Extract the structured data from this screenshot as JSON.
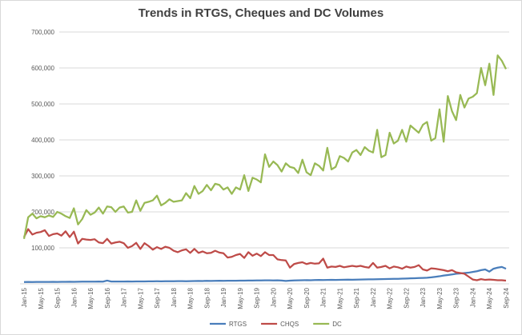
{
  "chart_data": {
    "type": "line",
    "title": "Trends in RTGS, Cheques and DC Volumes",
    "categories": [
      "Jan-15",
      null,
      null,
      null,
      "May-15",
      null,
      null,
      null,
      "Sep-15",
      null,
      null,
      null,
      "Jan-16",
      null,
      null,
      null,
      "May-16",
      null,
      null,
      null,
      "Sep-16",
      null,
      null,
      null,
      "Jan-17",
      null,
      null,
      null,
      "May-17",
      null,
      null,
      null,
      "Sep-17",
      null,
      null,
      null,
      "Jan-18",
      null,
      null,
      null,
      "May-18",
      null,
      null,
      null,
      "Sep-18",
      null,
      null,
      null,
      "Jan-19",
      null,
      null,
      null,
      "May-19",
      null,
      null,
      null,
      "Sep-19",
      null,
      null,
      null,
      "Jan-20",
      null,
      null,
      null,
      "May-20",
      null,
      null,
      null,
      "Sep-20",
      null,
      null,
      null,
      "Jan-21",
      null,
      null,
      null,
      "May-21",
      null,
      null,
      null,
      "Sep-21",
      null,
      null,
      null,
      "Jan-22",
      null,
      null,
      null,
      "May-22",
      null,
      null,
      null,
      "Sep-22",
      null,
      null,
      null,
      "Jan-23",
      null,
      null,
      null,
      "May-23",
      null,
      null,
      null,
      "Sep-23",
      null,
      null,
      null,
      "Jan-24",
      null,
      null,
      null,
      "May-24",
      null,
      null,
      null,
      "Sep-24"
    ],
    "series": [
      {
        "name": "RTGS",
        "color": "#4a7ebb",
        "values": [
          5000,
          5200,
          5100,
          5300,
          5200,
          5400,
          5300,
          5500,
          5400,
          5600,
          5500,
          5800,
          5700,
          5900,
          6000,
          6100,
          6000,
          6200,
          6300,
          6100,
          9000,
          6400,
          6300,
          6500,
          6400,
          6600,
          6500,
          6700,
          6800,
          6600,
          6900,
          7000,
          7100,
          7000,
          7200,
          7300,
          7200,
          7400,
          7500,
          7300,
          7600,
          7800,
          8000,
          7900,
          8200,
          8100,
          8300,
          8500,
          8200,
          8600,
          8500,
          8700,
          9000,
          8800,
          9200,
          9100,
          9400,
          9300,
          9600,
          9800,
          9500,
          9800,
          9200,
          8000,
          8800,
          9300,
          9700,
          9900,
          10200,
          10100,
          10500,
          10800,
          10600,
          10900,
          11200,
          10800,
          11000,
          11400,
          11600,
          11500,
          11800,
          12000,
          12300,
          12500,
          12400,
          12800,
          13000,
          13300,
          13500,
          13800,
          14000,
          14500,
          14800,
          15200,
          15500,
          16000,
          16500,
          17000,
          18000,
          19500,
          21000,
          23000,
          24500,
          26000,
          28000,
          29000,
          30000,
          31000,
          33000,
          35000,
          38000,
          40000,
          34000,
          42000,
          45000,
          47000,
          42000
        ]
      },
      {
        "name": "CHQS",
        "color": "#be4b48",
        "values": [
          130000,
          152000,
          137000,
          142000,
          144000,
          149000,
          133000,
          138000,
          140000,
          134000,
          146000,
          130000,
          145000,
          112000,
          125000,
          123000,
          122000,
          124000,
          115000,
          113000,
          125000,
          112000,
          115000,
          117000,
          113000,
          100000,
          105000,
          114000,
          97000,
          113000,
          105000,
          95000,
          102000,
          97000,
          103000,
          100000,
          92000,
          88000,
          93000,
          96000,
          86000,
          97000,
          86000,
          90000,
          85000,
          86000,
          92000,
          87000,
          85000,
          73000,
          75000,
          80000,
          83000,
          72000,
          88000,
          78000,
          84000,
          77000,
          88000,
          80000,
          80000,
          68000,
          66000,
          65000,
          45000,
          55000,
          58000,
          60000,
          55000,
          58000,
          56000,
          57000,
          70000,
          45000,
          48000,
          47000,
          50000,
          46000,
          48000,
          50000,
          48000,
          50000,
          47000,
          45000,
          58000,
          45000,
          47000,
          50000,
          43000,
          48000,
          46000,
          42000,
          48000,
          45000,
          47000,
          52000,
          40000,
          37000,
          43000,
          42000,
          40000,
          38000,
          35000,
          38000,
          32000,
          30000,
          28000,
          20000,
          12000,
          10000,
          13000,
          11000,
          12000,
          11000,
          10000,
          10000,
          9000
        ]
      },
      {
        "name": "DC",
        "color": "#98b954",
        "values": [
          125000,
          185000,
          195000,
          182000,
          188000,
          185000,
          190000,
          186000,
          200000,
          195000,
          188000,
          183000,
          210000,
          165000,
          180000,
          205000,
          192000,
          198000,
          212000,
          195000,
          215000,
          213000,
          200000,
          212000,
          215000,
          198000,
          200000,
          232000,
          203000,
          225000,
          228000,
          232000,
          245000,
          218000,
          225000,
          235000,
          228000,
          230000,
          232000,
          252000,
          238000,
          272000,
          250000,
          258000,
          275000,
          260000,
          278000,
          275000,
          262000,
          268000,
          250000,
          268000,
          262000,
          302000,
          258000,
          295000,
          290000,
          282000,
          360000,
          325000,
          340000,
          330000,
          312000,
          335000,
          325000,
          322000,
          308000,
          345000,
          310000,
          302000,
          335000,
          328000,
          315000,
          378000,
          318000,
          325000,
          355000,
          350000,
          340000,
          365000,
          372000,
          358000,
          380000,
          370000,
          365000,
          428000,
          352000,
          358000,
          420000,
          390000,
          398000,
          428000,
          395000,
          440000,
          430000,
          420000,
          442000,
          450000,
          398000,
          405000,
          485000,
          395000,
          522000,
          480000,
          455000,
          525000,
          490000,
          515000,
          520000,
          530000,
          600000,
          552000,
          612000,
          525000,
          635000,
          620000,
          597000
        ]
      }
    ],
    "ylim": [
      0,
      700000
    ],
    "yticks": [
      {
        "value": 100000,
        "label": "100,000"
      },
      {
        "value": 200000,
        "label": "200,000"
      },
      {
        "value": 300000,
        "label": "300,000"
      },
      {
        "value": 400000,
        "label": "400,000"
      },
      {
        "value": 500000,
        "label": "500,000"
      },
      {
        "value": 600000,
        "label": "600,000"
      },
      {
        "value": 700000,
        "label": "700,000"
      }
    ],
    "grid": true,
    "legend": "bottom"
  }
}
